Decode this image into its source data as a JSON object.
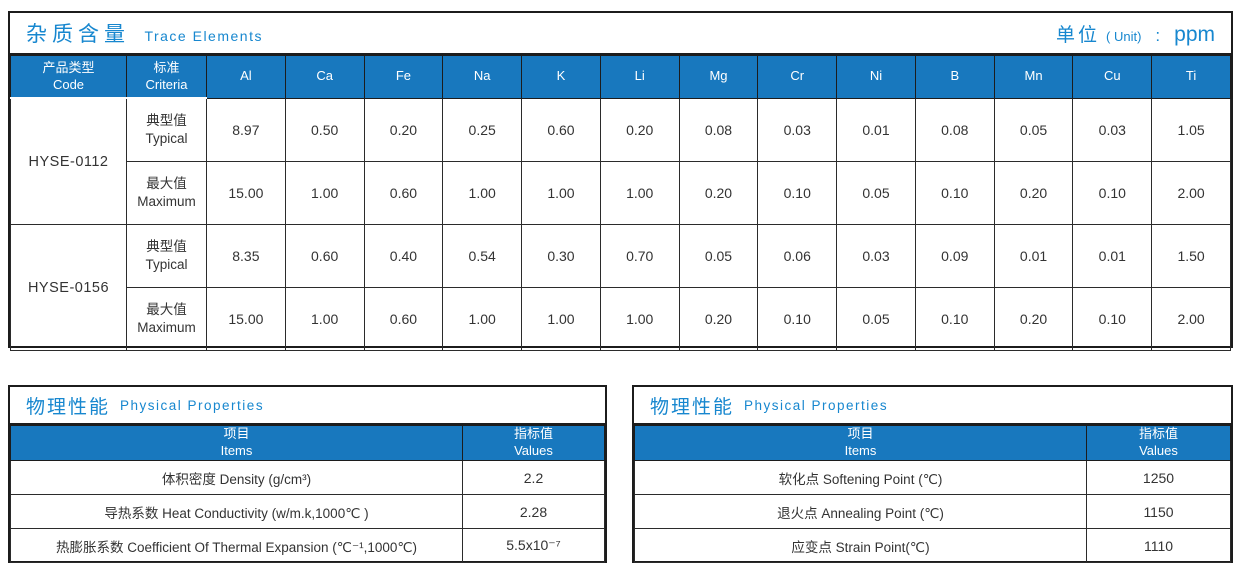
{
  "trace": {
    "title_zh": "杂质含量",
    "title_en": "Trace Elements",
    "unit_zh": "单位",
    "unit_paren": "( Unit)",
    "unit_colon": ":",
    "unit_value": "ppm",
    "col_code": {
      "zh": "产品类型",
      "en": "Code"
    },
    "col_criteria": {
      "zh": "标准",
      "en": "Criteria"
    },
    "elements": [
      "Al",
      "Ca",
      "Fe",
      "Na",
      "K",
      "Li",
      "Mg",
      "Cr",
      "Ni",
      "B",
      "Mn",
      "Cu",
      "Ti"
    ],
    "products": [
      {
        "code": "HYSE-0112",
        "rows": [
          {
            "label_zh": "典型值",
            "label_en": "Typical",
            "values": [
              "8.97",
              "0.50",
              "0.20",
              "0.25",
              "0.60",
              "0.20",
              "0.08",
              "0.03",
              "0.01",
              "0.08",
              "0.05",
              "0.03",
              "1.05"
            ]
          },
          {
            "label_zh": "最大值",
            "label_en": "Maximum",
            "values": [
              "15.00",
              "1.00",
              "0.60",
              "1.00",
              "1.00",
              "1.00",
              "0.20",
              "0.10",
              "0.05",
              "0.10",
              "0.20",
              "0.10",
              "2.00"
            ]
          }
        ]
      },
      {
        "code": "HYSE-0156",
        "rows": [
          {
            "label_zh": "典型值",
            "label_en": "Typical",
            "values": [
              "8.35",
              "0.60",
              "0.40",
              "0.54",
              "0.30",
              "0.70",
              "0.05",
              "0.06",
              "0.03",
              "0.09",
              "0.01",
              "0.01",
              "1.50"
            ]
          },
          {
            "label_zh": "最大值",
            "label_en": "Maximum",
            "values": [
              "15.00",
              "1.00",
              "0.60",
              "1.00",
              "1.00",
              "1.00",
              "0.20",
              "0.10",
              "0.05",
              "0.10",
              "0.20",
              "0.10",
              "2.00"
            ]
          }
        ]
      }
    ]
  },
  "physical_left": {
    "title_zh": "物理性能",
    "title_en": "Physical Properties",
    "col_items": {
      "zh": "项目",
      "en": "Items"
    },
    "col_values": {
      "zh": "指标值",
      "en": "Values"
    },
    "rows": [
      {
        "item": "体积密度 Density (g/cm³)",
        "value": "2.2"
      },
      {
        "item": "导热系数 Heat Conductivity (w/m.k,1000℃ )",
        "value": "2.28"
      },
      {
        "item": "热膨胀系数 Coefficient Of Thermal Expansion (℃⁻¹,1000℃)",
        "value": "5.5x10⁻⁷"
      }
    ]
  },
  "physical_right": {
    "title_zh": "物理性能",
    "title_en": "Physical Properties",
    "col_items": {
      "zh": "项目",
      "en": "Items"
    },
    "col_values": {
      "zh": "指标值",
      "en": "Values"
    },
    "rows": [
      {
        "item": "软化点 Softening Point (℃)",
        "value": "1250"
      },
      {
        "item": "退火点 Annealing Point (℃)",
        "value": "1150"
      },
      {
        "item": "应变点 Strain Point(℃)",
        "value": "1110"
      }
    ]
  },
  "colors": {
    "accent_blue": "#1878be",
    "title_blue": "#1787cf",
    "border_dark": "#1c1c1c"
  }
}
